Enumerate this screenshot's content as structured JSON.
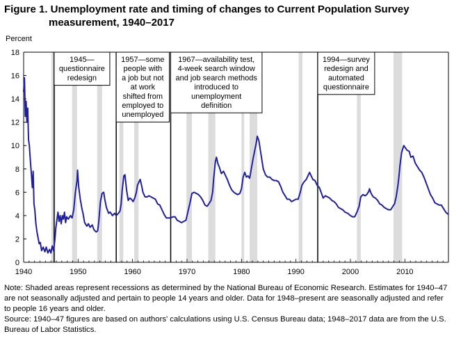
{
  "title_line1": "Figure 1. Unemployment rate and timing of changes  to Current Population Survey",
  "title_line2": "measurement, 1940–2017",
  "note": "Note: Shaded areas represent recessions as determined by the National Bureau of Economic Research. Estimates for 1940–47 are not seasonally adjusted and pertain to people 14 years and older. Data for 1948–present are seasonally adjusted and refer to people 16 years and older.",
  "source": "Source: 1940–47 figures are based on authors' calculations  using U.S. Census Bureau data; 1948–2017 data are from the U.S. Bureau of Labor Statistics.",
  "chart_data": {
    "type": "line",
    "ylabel": "Percent",
    "ylim": [
      0,
      18
    ],
    "xlim": [
      1940,
      2018
    ],
    "yticks": [
      0,
      2,
      4,
      6,
      8,
      10,
      12,
      14,
      16,
      18
    ],
    "xticks": [
      1940,
      1950,
      1960,
      1970,
      1980,
      1990,
      2000,
      2010
    ],
    "grid": false,
    "series": [
      {
        "color": "#1f1f9e",
        "points": [
          [
            1940.0,
            14.6
          ],
          [
            1940.15,
            15.8
          ],
          [
            1940.3,
            12.5
          ],
          [
            1940.45,
            13.8
          ],
          [
            1940.6,
            12.0
          ],
          [
            1940.75,
            13.2
          ],
          [
            1940.9,
            10.5
          ],
          [
            1941.05,
            10.0
          ],
          [
            1941.25,
            8.6
          ],
          [
            1941.45,
            7.4
          ],
          [
            1941.6,
            6.4
          ],
          [
            1941.75,
            7.8
          ],
          [
            1941.9,
            5.0
          ],
          [
            1942.05,
            4.5
          ],
          [
            1942.25,
            3.3
          ],
          [
            1942.45,
            2.6
          ],
          [
            1942.65,
            2.1
          ],
          [
            1942.85,
            1.6
          ],
          [
            1943.05,
            1.7
          ],
          [
            1943.3,
            1.0
          ],
          [
            1943.6,
            1.3
          ],
          [
            1943.9,
            0.9
          ],
          [
            1944.15,
            1.3
          ],
          [
            1944.45,
            0.8
          ],
          [
            1944.75,
            1.1
          ],
          [
            1945.0,
            0.8
          ],
          [
            1945.25,
            1.4
          ],
          [
            1945.5,
            1.0
          ],
          [
            1945.75,
            2.0
          ],
          [
            1945.9,
            2.9
          ],
          [
            1946.1,
            3.6
          ],
          [
            1946.3,
            4.3
          ],
          [
            1946.5,
            3.5
          ],
          [
            1946.7,
            4.0
          ],
          [
            1946.9,
            3.3
          ],
          [
            1947.1,
            4.0
          ],
          [
            1947.3,
            3.7
          ],
          [
            1947.5,
            4.3
          ],
          [
            1947.7,
            3.4
          ],
          [
            1947.9,
            3.9
          ],
          [
            1948.2,
            3.7
          ],
          [
            1948.6,
            4.0
          ],
          [
            1948.9,
            3.8
          ],
          [
            1949.2,
            4.5
          ],
          [
            1949.5,
            6.0
          ],
          [
            1949.8,
            7.0
          ],
          [
            1949.9,
            7.9
          ],
          [
            1950.1,
            6.5
          ],
          [
            1950.4,
            5.4
          ],
          [
            1950.7,
            4.6
          ],
          [
            1950.9,
            4.2
          ],
          [
            1951.2,
            3.4
          ],
          [
            1951.6,
            3.1
          ],
          [
            1951.9,
            3.3
          ],
          [
            1952.2,
            3.0
          ],
          [
            1952.6,
            3.2
          ],
          [
            1952.9,
            2.8
          ],
          [
            1953.3,
            2.6
          ],
          [
            1953.6,
            2.7
          ],
          [
            1953.8,
            3.5
          ],
          [
            1954.1,
            5.2
          ],
          [
            1954.4,
            5.9
          ],
          [
            1954.7,
            6.0
          ],
          [
            1954.9,
            5.4
          ],
          [
            1955.2,
            4.7
          ],
          [
            1955.6,
            4.2
          ],
          [
            1955.9,
            4.3
          ],
          [
            1956.3,
            4.0
          ],
          [
            1956.7,
            4.2
          ],
          [
            1957.0,
            4.0
          ],
          [
            1957.4,
            4.2
          ],
          [
            1957.7,
            4.4
          ],
          [
            1957.9,
            5.0
          ],
          [
            1958.1,
            6.2
          ],
          [
            1958.4,
            7.4
          ],
          [
            1958.6,
            7.5
          ],
          [
            1958.9,
            6.2
          ],
          [
            1959.2,
            5.3
          ],
          [
            1959.5,
            5.5
          ],
          [
            1959.8,
            5.4
          ],
          [
            1960.1,
            5.2
          ],
          [
            1960.4,
            5.5
          ],
          [
            1960.7,
            6.0
          ],
          [
            1960.9,
            6.6
          ],
          [
            1961.2,
            6.9
          ],
          [
            1961.4,
            7.1
          ],
          [
            1961.7,
            6.5
          ],
          [
            1961.9,
            6.0
          ],
          [
            1962.3,
            5.6
          ],
          [
            1962.7,
            5.6
          ],
          [
            1963.0,
            5.7
          ],
          [
            1963.4,
            5.6
          ],
          [
            1963.8,
            5.5
          ],
          [
            1964.2,
            5.4
          ],
          [
            1964.6,
            5.0
          ],
          [
            1965.0,
            4.9
          ],
          [
            1965.4,
            4.5
          ],
          [
            1965.8,
            4.1
          ],
          [
            1966.2,
            3.8
          ],
          [
            1966.6,
            3.8
          ],
          [
            1967.0,
            3.8
          ],
          [
            1967.4,
            3.9
          ],
          [
            1967.8,
            3.9
          ],
          [
            1968.2,
            3.6
          ],
          [
            1968.6,
            3.5
          ],
          [
            1969.0,
            3.4
          ],
          [
            1969.4,
            3.5
          ],
          [
            1969.8,
            3.6
          ],
          [
            1970.1,
            4.2
          ],
          [
            1970.5,
            5.0
          ],
          [
            1970.9,
            5.9
          ],
          [
            1971.3,
            6.0
          ],
          [
            1971.7,
            5.9
          ],
          [
            1972.1,
            5.8
          ],
          [
            1972.5,
            5.6
          ],
          [
            1972.9,
            5.3
          ],
          [
            1973.3,
            4.9
          ],
          [
            1973.7,
            4.8
          ],
          [
            1974.0,
            5.0
          ],
          [
            1974.4,
            5.3
          ],
          [
            1974.7,
            6.0
          ],
          [
            1974.9,
            7.2
          ],
          [
            1975.2,
            8.6
          ],
          [
            1975.4,
            9.0
          ],
          [
            1975.7,
            8.4
          ],
          [
            1975.9,
            8.2
          ],
          [
            1976.3,
            7.6
          ],
          [
            1976.7,
            7.8
          ],
          [
            1977.0,
            7.5
          ],
          [
            1977.4,
            7.1
          ],
          [
            1977.8,
            6.6
          ],
          [
            1978.2,
            6.2
          ],
          [
            1978.6,
            6.0
          ],
          [
            1978.9,
            5.9
          ],
          [
            1979.3,
            5.8
          ],
          [
            1979.7,
            5.9
          ],
          [
            1980.0,
            6.3
          ],
          [
            1980.3,
            7.3
          ],
          [
            1980.6,
            7.7
          ],
          [
            1980.9,
            7.3
          ],
          [
            1981.2,
            7.4
          ],
          [
            1981.5,
            7.2
          ],
          [
            1981.8,
            8.0
          ],
          [
            1982.1,
            8.8
          ],
          [
            1982.4,
            9.5
          ],
          [
            1982.7,
            10.2
          ],
          [
            1982.9,
            10.8
          ],
          [
            1983.2,
            10.4
          ],
          [
            1983.5,
            9.5
          ],
          [
            1983.8,
            8.6
          ],
          [
            1984.0,
            8.0
          ],
          [
            1984.4,
            7.5
          ],
          [
            1984.8,
            7.3
          ],
          [
            1985.2,
            7.3
          ],
          [
            1985.6,
            7.1
          ],
          [
            1986.0,
            7.0
          ],
          [
            1986.4,
            7.0
          ],
          [
            1986.8,
            6.9
          ],
          [
            1987.2,
            6.5
          ],
          [
            1987.6,
            6.0
          ],
          [
            1988.0,
            5.7
          ],
          [
            1988.4,
            5.4
          ],
          [
            1988.8,
            5.4
          ],
          [
            1989.2,
            5.2
          ],
          [
            1989.6,
            5.3
          ],
          [
            1990.0,
            5.4
          ],
          [
            1990.4,
            5.4
          ],
          [
            1990.8,
            6.0
          ],
          [
            1991.1,
            6.6
          ],
          [
            1991.5,
            6.9
          ],
          [
            1991.9,
            7.1
          ],
          [
            1992.2,
            7.4
          ],
          [
            1992.5,
            7.7
          ],
          [
            1992.8,
            7.4
          ],
          [
            1993.1,
            7.1
          ],
          [
            1993.5,
            7.0
          ],
          [
            1993.9,
            6.6
          ],
          [
            1994.3,
            6.4
          ],
          [
            1994.7,
            5.9
          ],
          [
            1995.0,
            5.5
          ],
          [
            1995.4,
            5.7
          ],
          [
            1995.8,
            5.6
          ],
          [
            1996.2,
            5.5
          ],
          [
            1996.6,
            5.3
          ],
          [
            1997.0,
            5.2
          ],
          [
            1997.4,
            5.0
          ],
          [
            1997.8,
            4.7
          ],
          [
            1998.2,
            4.6
          ],
          [
            1998.6,
            4.5
          ],
          [
            1999.0,
            4.3
          ],
          [
            1999.5,
            4.2
          ],
          [
            2000.0,
            4.0
          ],
          [
            2000.4,
            3.9
          ],
          [
            2000.8,
            3.9
          ],
          [
            2001.2,
            4.3
          ],
          [
            2001.6,
            4.8
          ],
          [
            2001.9,
            5.6
          ],
          [
            2002.3,
            5.8
          ],
          [
            2002.7,
            5.7
          ],
          [
            2003.0,
            5.8
          ],
          [
            2003.4,
            6.1
          ],
          [
            2003.5,
            6.3
          ],
          [
            2003.8,
            5.9
          ],
          [
            2004.2,
            5.6
          ],
          [
            2004.6,
            5.5
          ],
          [
            2005.0,
            5.3
          ],
          [
            2005.4,
            5.0
          ],
          [
            2005.8,
            4.9
          ],
          [
            2006.2,
            4.7
          ],
          [
            2006.6,
            4.6
          ],
          [
            2007.0,
            4.5
          ],
          [
            2007.4,
            4.5
          ],
          [
            2007.8,
            4.8
          ],
          [
            2008.1,
            5.0
          ],
          [
            2008.4,
            5.6
          ],
          [
            2008.7,
            6.5
          ],
          [
            2008.9,
            7.3
          ],
          [
            2009.1,
            8.3
          ],
          [
            2009.4,
            9.4
          ],
          [
            2009.8,
            10.0
          ],
          [
            2010.1,
            9.8
          ],
          [
            2010.4,
            9.6
          ],
          [
            2010.8,
            9.5
          ],
          [
            2011.1,
            9.0
          ],
          [
            2011.5,
            9.1
          ],
          [
            2011.9,
            8.5
          ],
          [
            2012.3,
            8.2
          ],
          [
            2012.7,
            7.9
          ],
          [
            2013.1,
            7.7
          ],
          [
            2013.5,
            7.3
          ],
          [
            2013.9,
            6.8
          ],
          [
            2014.3,
            6.3
          ],
          [
            2014.7,
            5.8
          ],
          [
            2015.1,
            5.5
          ],
          [
            2015.5,
            5.1
          ],
          [
            2015.9,
            5.0
          ],
          [
            2016.3,
            4.9
          ],
          [
            2016.7,
            4.9
          ],
          [
            2017.1,
            4.6
          ],
          [
            2017.5,
            4.3
          ],
          [
            2017.95,
            4.1
          ]
        ]
      }
    ],
    "recessions": [
      [
        1945.1,
        1945.8
      ],
      [
        1948.9,
        1949.8
      ],
      [
        1953.5,
        1954.4
      ],
      [
        1957.6,
        1958.3
      ],
      [
        1960.3,
        1961.1
      ],
      [
        1969.9,
        1970.9
      ],
      [
        1973.9,
        1975.2
      ],
      [
        1980.0,
        1980.5
      ],
      [
        1981.5,
        1982.9
      ],
      [
        1990.5,
        1991.2
      ],
      [
        2001.2,
        2001.9
      ],
      [
        2007.9,
        2009.5
      ]
    ],
    "annotations": [
      {
        "year": 1945.6,
        "label": "1945—\nquestionnaire\nredesign"
      },
      {
        "year": 1957.0,
        "label": "1957—some\npeople with\na job but not\nat work\nshifted from\nemployed to\nunemployed"
      },
      {
        "year": 1967.0,
        "label": "1967—availability test,\n4-week search window\nand job search methods\nintroduced to\nunemployment\ndefinition"
      },
      {
        "year": 1994.0,
        "label": "1994—survey\nredesign and\nautomated\nquestionnaire"
      }
    ]
  }
}
